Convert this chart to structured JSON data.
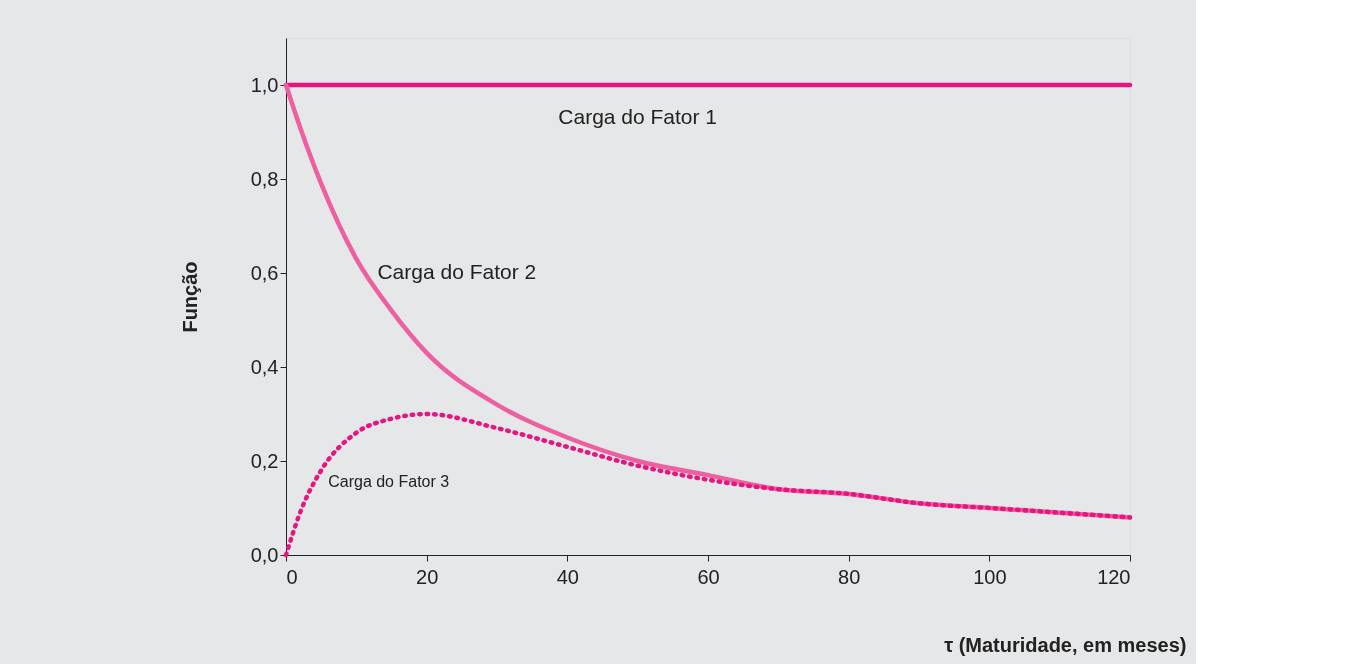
{
  "chart_data": {
    "type": "line",
    "xlabel": "τ (Maturidade, em meses)",
    "ylabel": "Função",
    "x": [
      0,
      2,
      5,
      10,
      15,
      20,
      30,
      40,
      50,
      60,
      70,
      80,
      90,
      100,
      110,
      120
    ],
    "series": [
      {
        "name": "Carga do Fator 1",
        "color": "#e6157f",
        "line_style": "solid",
        "values": [
          1.0,
          1.0,
          1.0,
          1.0,
          1.0,
          1.0,
          1.0,
          1.0,
          1.0,
          1.0,
          1.0,
          1.0,
          1.0,
          1.0,
          1.0,
          1.0
        ]
      },
      {
        "name": "Carga do Fator 2",
        "color": "#ee5fa0",
        "line_style": "solid",
        "values": [
          1.0,
          0.91,
          0.79,
          0.63,
          0.52,
          0.43,
          0.32,
          0.25,
          0.2,
          0.17,
          0.14,
          0.13,
          0.11,
          0.1,
          0.09,
          0.08
        ]
      },
      {
        "name": "Carga do Fator 3",
        "color": "#e6157f",
        "line_style": "dotted",
        "values": [
          0.0,
          0.09,
          0.18,
          0.26,
          0.29,
          0.3,
          0.27,
          0.23,
          0.19,
          0.16,
          0.14,
          0.13,
          0.11,
          0.1,
          0.09,
          0.08
        ]
      }
    ],
    "xlim": [
      0,
      120
    ],
    "xticks": [
      0,
      20,
      40,
      60,
      80,
      100,
      120
    ],
    "ylim": [
      0,
      1.1
    ],
    "yticks": [
      {
        "value": 0,
        "label": "0,0"
      },
      {
        "value": 0.2,
        "label": "0,2"
      },
      {
        "value": 0.4,
        "label": "0,4"
      },
      {
        "value": 0.6,
        "label": "0,6"
      },
      {
        "value": 0.8,
        "label": "0,8"
      },
      {
        "value": 1.0,
        "label": "1,0"
      }
    ],
    "grid": false,
    "legend": false
  }
}
